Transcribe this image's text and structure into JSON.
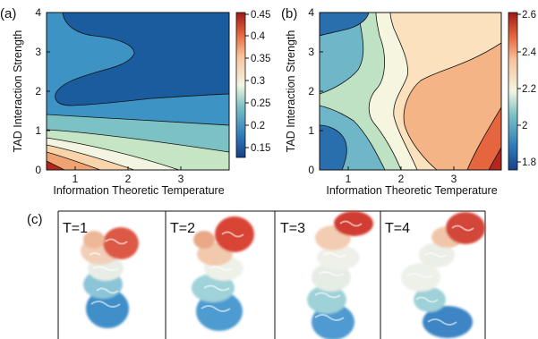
{
  "panels": [
    {
      "id": "a",
      "label": "(a)",
      "xlabel": "Information Theoretic Temperature",
      "ylabel": "TAD Interaction Strength",
      "xticks": [
        "1",
        "2",
        "3"
      ],
      "yticks": [
        "0",
        "1",
        "2",
        "3",
        "4"
      ],
      "colorbar_ticks": [
        "0.45",
        "0.4",
        "0.35",
        "0.3",
        "0.25",
        "0.2",
        "0.15"
      ]
    },
    {
      "id": "b",
      "label": "(b)",
      "xlabel": "Information Theoretic Temperature",
      "ylabel": "TAD Interaction Strength",
      "xticks": [
        "1",
        "2",
        "3"
      ],
      "yticks": [
        "0",
        "1",
        "2",
        "3",
        "4"
      ],
      "colorbar_ticks": [
        "2.6",
        "2.4",
        "2.2",
        "2",
        "1.8"
      ]
    }
  ],
  "panel_c": {
    "label": "(c)",
    "structures": [
      "T=1",
      "T=2",
      "T=3",
      "T=4"
    ]
  },
  "chart_data": [
    {
      "type": "heatmap",
      "title": "",
      "xlabel": "Information Theoretic Temperature",
      "ylabel": "TAD Interaction Strength",
      "xlim": [
        0.5,
        4.0
      ],
      "ylim": [
        0,
        4
      ],
      "colorbar_range": [
        0.12,
        0.45
      ],
      "levels": [
        {
          "region": "top plateau",
          "value": 0.14,
          "color": "#1b5c9e"
        },
        {
          "region": "upper band",
          "value": 0.19,
          "color": "#3d94c4"
        },
        {
          "region": "middle band",
          "value": 0.23,
          "color": "#7cc2c5"
        },
        {
          "region": "lower band",
          "value": 0.27,
          "color": "#c6e5c4"
        },
        {
          "region": "low-left",
          "value": 0.31,
          "color": "#f3f5e2"
        },
        {
          "region": "bottom",
          "value": 0.35,
          "color": "#f8d4ad"
        },
        {
          "region": "bottom corner",
          "value": 0.39,
          "color": "#f0a272"
        },
        {
          "region": "extreme corner",
          "value": 0.44,
          "color": "#b4271d"
        }
      ]
    },
    {
      "type": "heatmap",
      "title": "",
      "xlabel": "Information Theoretic Temperature",
      "ylabel": "TAD Interaction Strength",
      "xlim": [
        0.5,
        4.0
      ],
      "ylim": [
        0,
        4
      ],
      "colorbar_range": [
        1.75,
        2.6
      ],
      "levels": [
        {
          "region": "left corners",
          "value": 1.8,
          "color": "#2a6fad"
        },
        {
          "region": "left band",
          "value": 1.95,
          "color": "#6fb6c8"
        },
        {
          "region": "central band",
          "value": 2.08,
          "color": "#bfe2c5"
        },
        {
          "region": "cross region",
          "value": 2.18,
          "color": "#f6f6e0"
        },
        {
          "region": "upper right",
          "value": 2.28,
          "color": "#fbe1bd"
        },
        {
          "region": "right lobe",
          "value": 2.38,
          "color": "#f4b486"
        },
        {
          "region": "bottom right",
          "value": 2.5,
          "color": "#e5653f"
        },
        {
          "region": "extreme corner",
          "value": 2.58,
          "color": "#b4271d"
        }
      ]
    }
  ],
  "colors": {
    "deep_blue": "#1b5c9e",
    "mid_blue": "#3d94c4",
    "teal": "#7cc2c5",
    "pale_green": "#c6e5c4",
    "cream": "#f6f6e0",
    "peach": "#f8d4ad",
    "orange": "#f0a272",
    "red": "#b4271d"
  }
}
